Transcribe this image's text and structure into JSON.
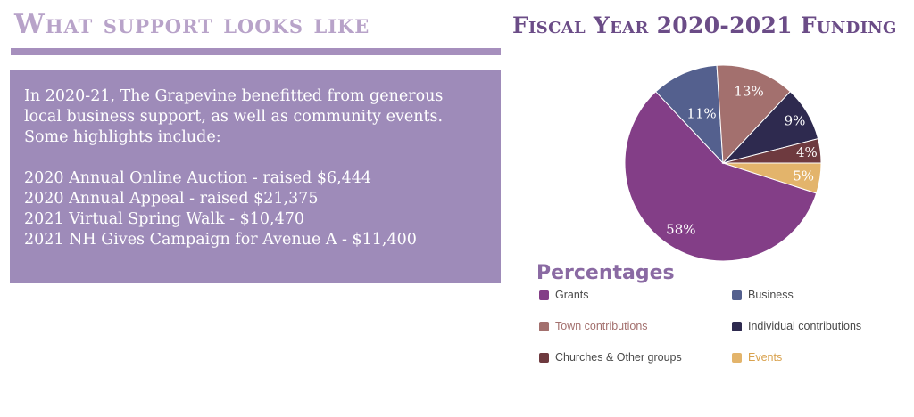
{
  "left_section": {
    "heading": "What support looks like",
    "intro_lines": [
      "In 2020-21, The Grapevine benefitted from generous",
      "local business support, as well as community events.",
      "Some highlights include:"
    ],
    "highlights": [
      "2020 Annual Online Auction - raised $6,444",
      "2020 Annual Appeal  - raised $21,375",
      "2021 Virtual Spring Walk - $10,470",
      "2021 NH Gives Campaign for Avenue A - $11,400"
    ]
  },
  "chart_data": {
    "type": "pie",
    "title": "Fiscal Year 2020-2021 Funding",
    "legend_title": "Percentages",
    "legend_placement": "bottom",
    "slices": [
      {
        "name": "Grants",
        "value": 58,
        "label": "58%",
        "color": "#833e87"
      },
      {
        "name": "Business",
        "value": 11,
        "label": "11%",
        "color": "#54608e"
      },
      {
        "name": "Town contributions",
        "value": 13,
        "label": "13%",
        "color": "#a3706e"
      },
      {
        "name": "Individual contributions",
        "value": 9,
        "label": "9%",
        "color": "#2e2a4f"
      },
      {
        "name": "Churches & Other groups",
        "value": 4,
        "label": "4%",
        "color": "#6e3a3f"
      },
      {
        "name": "Events",
        "value": 5,
        "label": "5%",
        "color": "#e3b46b"
      }
    ]
  }
}
